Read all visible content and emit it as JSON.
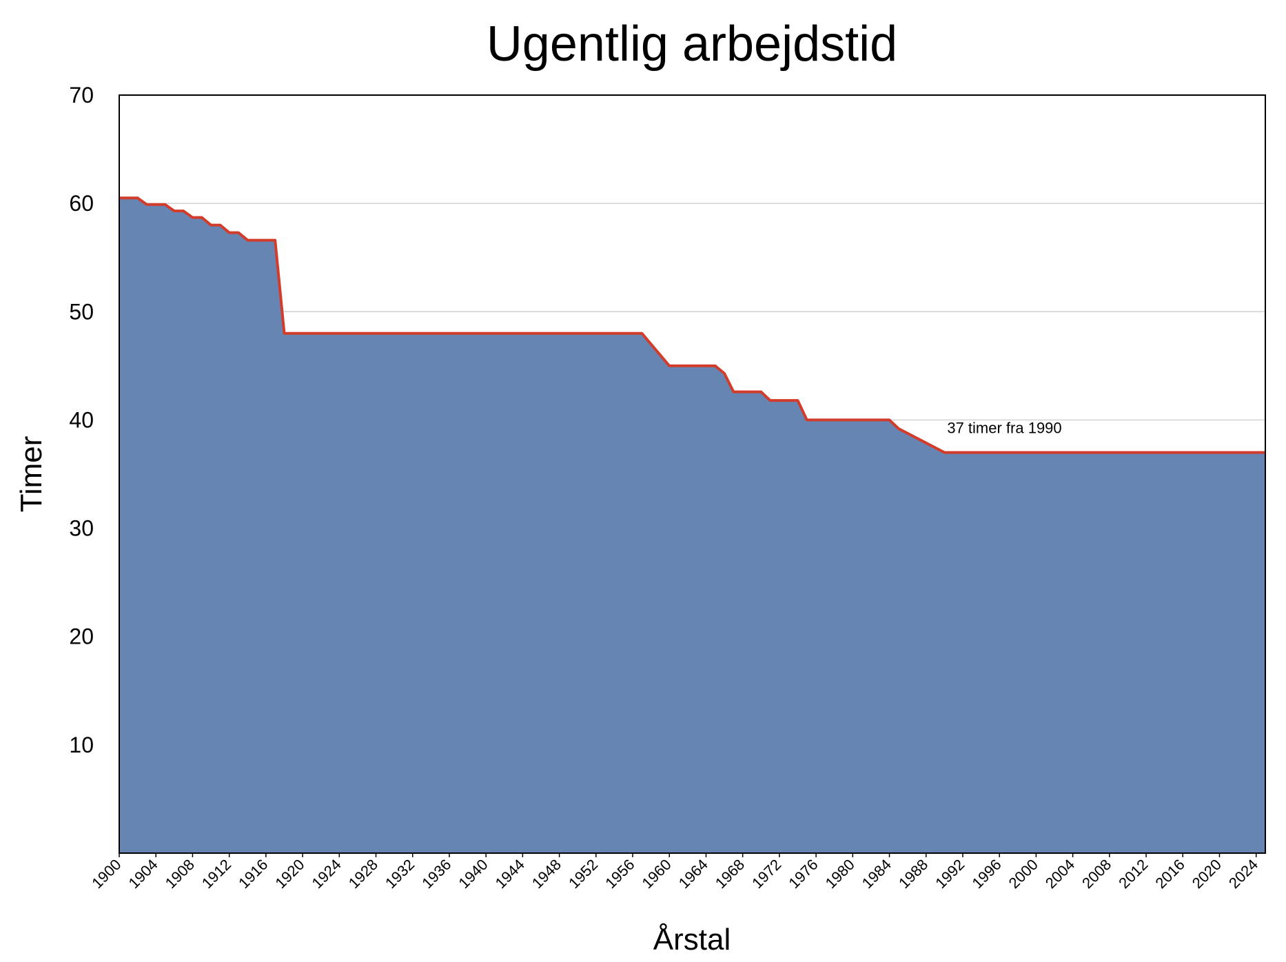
{
  "chart_data": {
    "type": "area",
    "title": "Ugentlig arbejdstid",
    "x_label": "Årstal",
    "y_label": "Timer",
    "x": [
      1900,
      1902,
      1903,
      1905,
      1906,
      1907,
      1908,
      1909,
      1910,
      1911,
      1912,
      1913,
      1914,
      1917,
      1918,
      1957,
      1960,
      1965,
      1966,
      1967,
      1970,
      1971,
      1974,
      1975,
      1984,
      1985,
      1990,
      2025
    ],
    "series": [
      {
        "name": "Timer",
        "color": "#6785b3",
        "line_color": "#d23c2b",
        "values": [
          60.5,
          60.5,
          59.9,
          59.9,
          59.3,
          59.3,
          58.7,
          58.7,
          58,
          58,
          57.3,
          57.3,
          56.6,
          56.6,
          48,
          48,
          45,
          45,
          44.3,
          42.6,
          42.6,
          41.8,
          41.8,
          40,
          40,
          39.2,
          37,
          37
        ]
      }
    ],
    "annotations": [
      {
        "text": "37 timer fra 1990",
        "x": 1990.3,
        "y": 38.8
      }
    ],
    "xlim": [
      1900,
      2025
    ],
    "ylim": [
      0,
      70
    ],
    "xticks": [
      1900,
      1904,
      1908,
      1912,
      1916,
      1920,
      1924,
      1928,
      1932,
      1936,
      1940,
      1944,
      1948,
      1952,
      1956,
      1960,
      1964,
      1968,
      1972,
      1976,
      1980,
      1984,
      1988,
      1992,
      1996,
      2000,
      2004,
      2008,
      2012,
      2016,
      2020,
      2024
    ],
    "yticks": [
      10,
      20,
      30,
      40,
      50,
      60,
      70
    ],
    "grid": true
  }
}
